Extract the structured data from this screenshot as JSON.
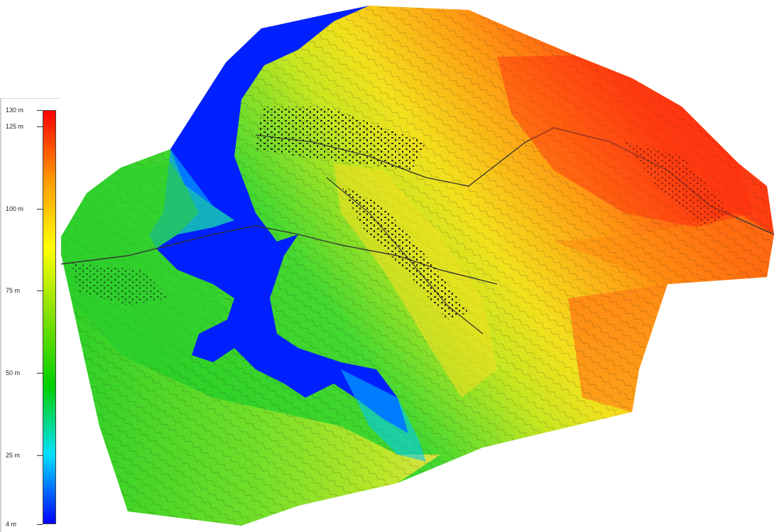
{
  "legend": {
    "ticks": [
      {
        "value": 130,
        "label": "130 m"
      },
      {
        "value": 125,
        "label": "125 m"
      },
      {
        "value": 100,
        "label": "100 m"
      },
      {
        "value": 75,
        "label": "75 m"
      },
      {
        "value": 50,
        "label": "50 m"
      },
      {
        "value": 25,
        "label": "25 m"
      },
      {
        "value": 4,
        "label": "4 m"
      }
    ],
    "min": 4,
    "max": 130,
    "gradient_stops": [
      "#0000ff",
      "#00e0ff",
      "#00d000",
      "#7fe000",
      "#ffff00",
      "#ff9900",
      "#ff0000"
    ]
  },
  "map": {
    "colors": {
      "water": "#0020ff",
      "low": "#22cc22",
      "mid_green": "#55dd33",
      "yellow": "#f0e020",
      "orange": "#ff8a10",
      "high": "#ff2a10",
      "contour": "#1a1a1a"
    }
  }
}
